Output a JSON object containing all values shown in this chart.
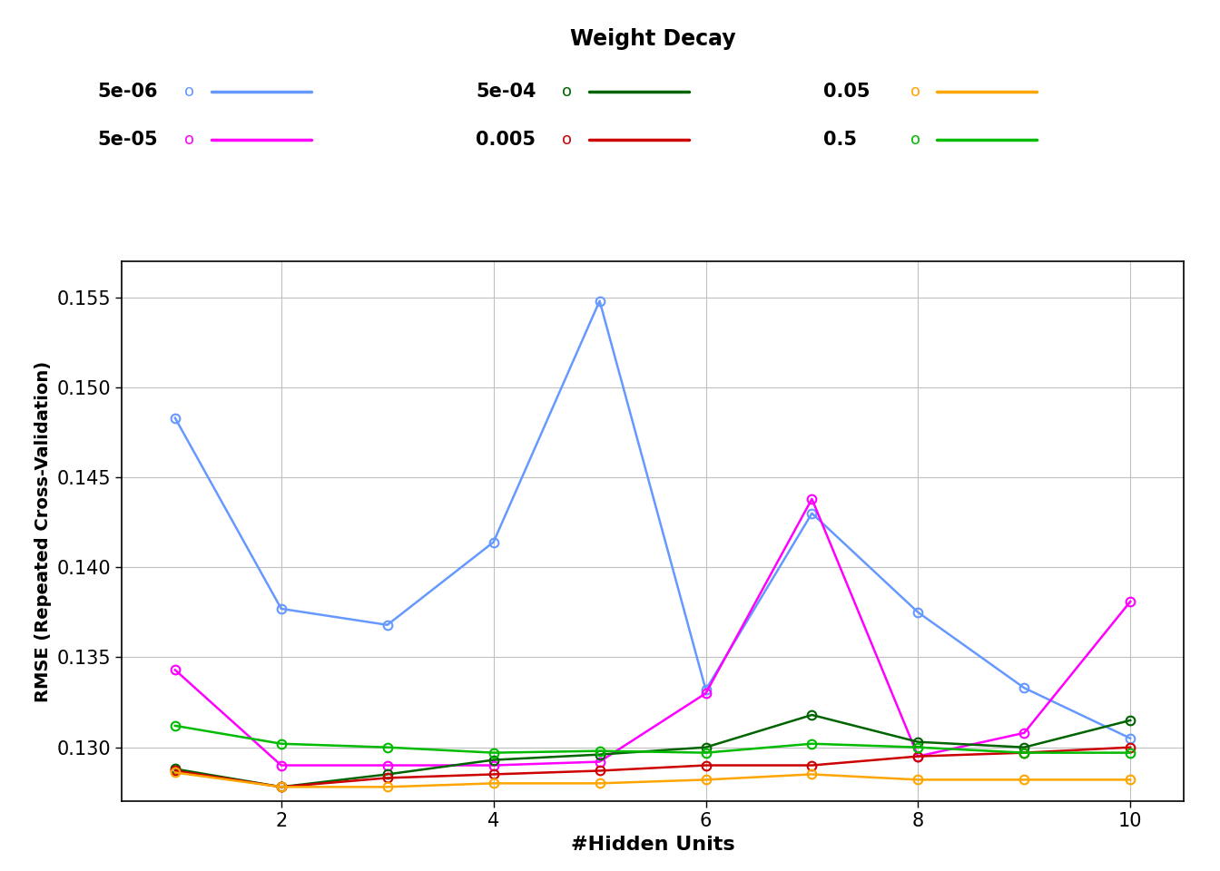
{
  "x": [
    1,
    2,
    3,
    4,
    5,
    6,
    7,
    8,
    9,
    10
  ],
  "series_order": [
    "5e-06",
    "5e-05",
    "5e-04",
    "0.005",
    "0.05",
    "0.5"
  ],
  "series": {
    "5e-06": {
      "color": "#6699FF",
      "values": [
        0.1483,
        0.1377,
        0.1368,
        0.1414,
        0.1548,
        0.1332,
        0.143,
        0.1375,
        0.1333,
        0.1305
      ]
    },
    "5e-05": {
      "color": "#FF00FF",
      "values": [
        0.1343,
        0.129,
        0.129,
        0.129,
        0.1292,
        0.133,
        0.1438,
        0.1295,
        0.1308,
        0.1381
      ]
    },
    "5e-04": {
      "color": "#006400",
      "values": [
        0.1288,
        0.1278,
        0.1285,
        0.1293,
        0.1296,
        0.13,
        0.1318,
        0.1303,
        0.13,
        0.1315
      ]
    },
    "0.005": {
      "color": "#CC0000",
      "values": [
        0.1287,
        0.1278,
        0.1283,
        0.1285,
        0.1287,
        0.129,
        0.129,
        0.1295,
        0.1297,
        0.13
      ]
    },
    "0.05": {
      "color": "#FFA500",
      "values": [
        0.1286,
        0.1278,
        0.1278,
        0.128,
        0.128,
        0.1282,
        0.1285,
        0.1282,
        0.1282,
        0.1282
      ]
    },
    "0.5": {
      "color": "#00BB00",
      "values": [
        0.1312,
        0.1302,
        0.13,
        0.1297,
        0.1298,
        0.1297,
        0.1302,
        0.13,
        0.1297,
        0.1297
      ]
    }
  },
  "legend_title": "Weight Decay",
  "xlabel": "#Hidden Units",
  "ylabel": "RMSE (Repeated Cross-Validation)",
  "ylim": [
    0.127,
    0.157
  ],
  "yticks": [
    0.13,
    0.135,
    0.14,
    0.145,
    0.15,
    0.155
  ],
  "xticks": [
    2,
    4,
    6,
    8,
    10
  ],
  "background_color": "#FFFFFF",
  "plot_bg_color": "#FFFFFF",
  "grid_color": "#C0C0C0"
}
